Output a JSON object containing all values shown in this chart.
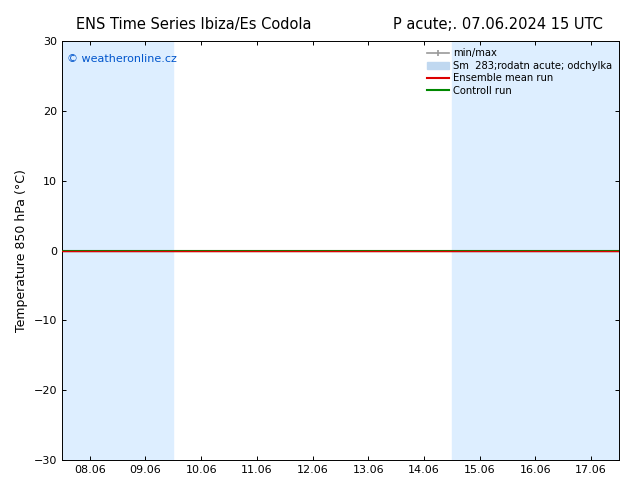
{
  "title_left": "ENS Time Series Ibiza/Es Codola",
  "title_right": "P acute;. 07.06.2024 15 UTC",
  "ylabel": "Temperature 850 hPa (°C)",
  "ylim": [
    -30,
    30
  ],
  "yticks": [
    -30,
    -20,
    -10,
    0,
    10,
    20,
    30
  ],
  "xlabels": [
    "08.06",
    "09.06",
    "10.06",
    "11.06",
    "12.06",
    "13.06",
    "14.06",
    "15.06",
    "16.06",
    "17.06"
  ],
  "x_positions": [
    0,
    1,
    2,
    3,
    4,
    5,
    6,
    7,
    8,
    9
  ],
  "watermark": "© weatheronline.cz",
  "watermark_color": "#0055cc",
  "bg_color": "#ffffff",
  "plot_bg_color": "#ffffff",
  "shaded_cols_light": [
    0,
    1,
    7,
    8,
    9
  ],
  "shaded_color_light": "#ddeeff",
  "zero_line_color": "#000000",
  "control_run_value": 0.0,
  "ensemble_mean_value": 0.0,
  "control_run_color": "#008800",
  "ensemble_mean_color": "#dd0000",
  "legend_minmax_color": "#999999",
  "legend_sm_color": "#c0d8f0",
  "title_fontsize": 10.5,
  "axis_fontsize": 9,
  "tick_fontsize": 8,
  "legend_label_minmax": "min/max",
  "legend_label_sm": "Sm  283;rodatn acute; odchylka",
  "legend_label_ensemble": "Ensemble mean run",
  "legend_label_control": "Controll run"
}
